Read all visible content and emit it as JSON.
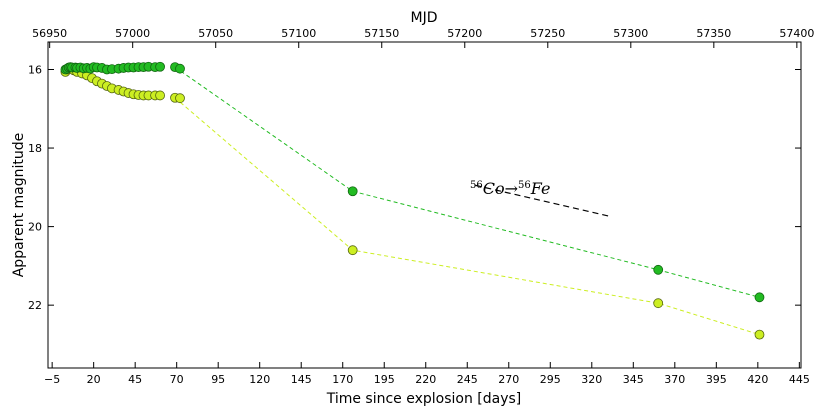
{
  "chart_data": {
    "type": "scatter",
    "title": "",
    "xlabel": "Time since explosion [days]",
    "ylabel": "Apparent magnitude",
    "top_xlabel": "MJD",
    "xlim": [
      -7.5,
      446
    ],
    "ylim": [
      23.6,
      15.3
    ],
    "y_inverted": true,
    "grid": false,
    "legend": "none",
    "x_ticks": [
      -5,
      20,
      45,
      70,
      95,
      120,
      145,
      170,
      195,
      220,
      245,
      270,
      295,
      320,
      345,
      370,
      395,
      420,
      445
    ],
    "x_tick_labels": [
      "−5",
      "20",
      "45",
      "70",
      "95",
      "120",
      "145",
      "170",
      "195",
      "220",
      "245",
      "270",
      "295",
      "320",
      "345",
      "370",
      "395",
      "420",
      "445"
    ],
    "y_ticks": [
      16,
      18,
      20,
      22
    ],
    "y_tick_labels": [
      "16",
      "18",
      "20",
      "22"
    ],
    "top_ticks": [
      56950,
      57000,
      57050,
      57100,
      57150,
      57200,
      57250,
      57300,
      57350,
      57400
    ],
    "top_tick_labels": [
      "56950",
      "57000",
      "57050",
      "57100",
      "57150",
      "57200",
      "57250",
      "57300",
      "57350",
      "57400"
    ],
    "mjd_offset": 56956.5,
    "series": [
      {
        "color": "#22bb22",
        "edge": "#116611",
        "x": [
          3,
          4,
          5,
          6,
          7,
          9,
          10,
          12,
          14,
          16,
          18,
          20,
          22,
          25,
          28,
          31,
          35,
          38,
          41,
          44,
          47,
          50,
          53,
          57,
          60,
          69,
          72,
          176,
          360,
          421
        ],
        "y": [
          16.0,
          15.98,
          15.95,
          15.94,
          15.95,
          15.95,
          15.96,
          15.95,
          15.97,
          15.96,
          15.98,
          15.94,
          15.95,
          15.96,
          16.0,
          15.99,
          15.98,
          15.96,
          15.95,
          15.95,
          15.94,
          15.94,
          15.93,
          15.94,
          15.93,
          15.94,
          15.98,
          19.1,
          21.1,
          21.8
        ]
      },
      {
        "color": "#ccee22",
        "edge": "#556611",
        "x": [
          3,
          4,
          6,
          8,
          10,
          13,
          16,
          19,
          22,
          25,
          28,
          31,
          35,
          38,
          41,
          44,
          47,
          50,
          53,
          57,
          60,
          69,
          72,
          176,
          360,
          421
        ],
        "y": [
          16.06,
          16.0,
          15.97,
          16.02,
          16.06,
          16.1,
          16.15,
          16.22,
          16.3,
          16.36,
          16.42,
          16.48,
          16.52,
          16.56,
          16.6,
          16.63,
          16.65,
          16.66,
          16.66,
          16.66,
          16.66,
          16.72,
          16.73,
          20.6,
          21.95,
          22.75
        ]
      }
    ],
    "dashed_fit_x": [
      69,
      176,
      360,
      421
    ],
    "annotation": {
      "text": "56Co → 56Fe",
      "parts": [
        "56",
        "Co",
        "→",
        "56",
        "Fe"
      ],
      "x1": 250,
      "y1": 18.95,
      "x2": 330,
      "y2": 19.73
    }
  }
}
